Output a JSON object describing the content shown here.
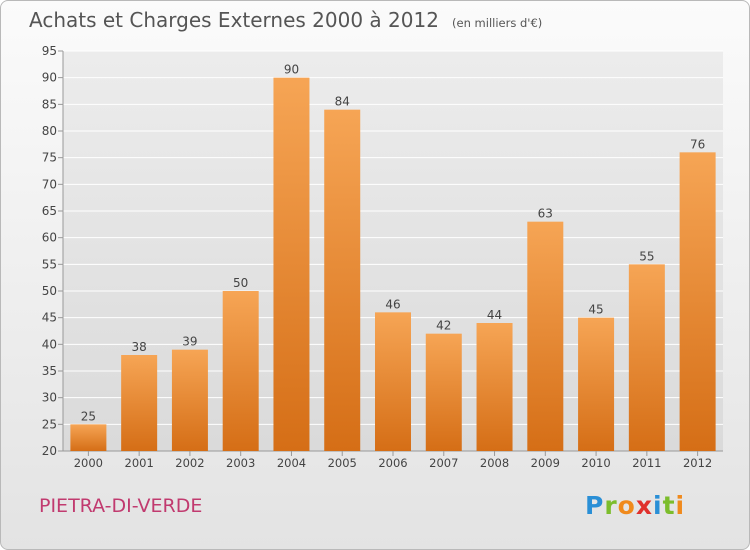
{
  "header": {
    "title": "Achats et Charges Externes 2000 à 2012",
    "unit": "(en milliers d'€)"
  },
  "footer": {
    "commune": "PIETRA-DI-VERDE",
    "logo_letters": [
      {
        "char": "P",
        "color": "#2a8fd6"
      },
      {
        "char": "r",
        "color": "#7cbd2c"
      },
      {
        "char": "o",
        "color": "#f08a1c"
      },
      {
        "char": "x",
        "color": "#e0302c"
      },
      {
        "char": "i",
        "color": "#2a8fd6"
      },
      {
        "char": "t",
        "color": "#7cbd2c"
      },
      {
        "char": "i",
        "color": "#f08a1c"
      }
    ]
  },
  "colors": {
    "bar_top": "#f6a555",
    "bar_bottom": "#d56e16",
    "grid": "#ffffff",
    "axis_text": "#444444",
    "commune": "#c13a6f"
  },
  "chart_data": {
    "type": "bar",
    "categories": [
      "2000",
      "2001",
      "2002",
      "2003",
      "2004",
      "2005",
      "2006",
      "2007",
      "2008",
      "2009",
      "2010",
      "2011",
      "2012"
    ],
    "values": [
      25,
      38,
      39,
      50,
      90,
      84,
      46,
      42,
      44,
      63,
      45,
      55,
      76
    ],
    "ylim": [
      20,
      95
    ],
    "yticks": [
      20,
      25,
      30,
      35,
      40,
      45,
      50,
      55,
      60,
      65,
      70,
      75,
      80,
      85,
      90,
      95
    ],
    "grid": true,
    "data_labels": true
  }
}
